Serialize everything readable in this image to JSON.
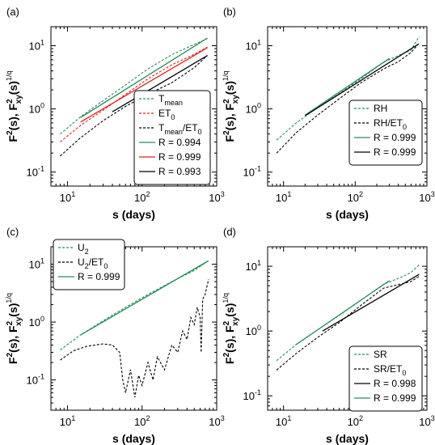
{
  "chart_data": [
    {
      "type": "line",
      "panel": "(a)",
      "xlabel": "s (days)",
      "ylabel_main": "F",
      "ylabel_sup1": "2",
      "ylabel_mid": "(s), F",
      "ylabel_sup2": "2",
      "ylabel_sub": "xy",
      "ylabel_tail": "(s)",
      "ylabel_sup3": "1/q",
      "xscale": "log",
      "yscale": "log",
      "xlim": [
        6,
        1000
      ],
      "ylim": [
        0.06,
        20
      ],
      "legend_position": "lower-right",
      "series": [
        {
          "name": "T",
          "name_sub": "mean",
          "color": "#2a8a5a",
          "dash": true,
          "x": [
            8,
            15,
            30,
            60,
            120,
            250,
            500,
            750
          ],
          "y": [
            0.4,
            0.75,
            1.35,
            2.4,
            4.3,
            7.2,
            10.5,
            13.0
          ]
        },
        {
          "name": "ET",
          "name_sub": "0",
          "color": "#e0231c",
          "dash": true,
          "x": [
            8,
            15,
            30,
            60,
            120,
            250,
            500,
            750
          ],
          "y": [
            0.3,
            0.55,
            0.95,
            1.7,
            3.0,
            5.0,
            7.3,
            9.5
          ]
        },
        {
          "name": "T",
          "name_sub": "mean",
          "name_tail": "/ET",
          "name_sub2": "0",
          "color": "#000000",
          "dash": true,
          "x": [
            8,
            15,
            30,
            60,
            120,
            250,
            500,
            750
          ],
          "y": [
            0.18,
            0.35,
            0.65,
            1.1,
            1.7,
            2.6,
            4.5,
            7.0
          ]
        },
        {
          "name": "R = 0.994",
          "color": "#2a8a5a",
          "dash": false,
          "x": [
            15,
            750
          ],
          "y": [
            0.73,
            13.2
          ]
        },
        {
          "name": "R = 0.999",
          "color": "#e0231c",
          "dash": false,
          "x": [
            15,
            750
          ],
          "y": [
            0.62,
            9.3
          ]
        },
        {
          "name": "R = 0.993",
          "color": "#000000",
          "dash": false,
          "x": [
            40,
            750
          ],
          "y": [
            0.9,
            7.0
          ]
        }
      ]
    },
    {
      "type": "line",
      "panel": "(b)",
      "xlabel": "s (days)",
      "ylabel_main": "F",
      "ylabel_sup1": "2",
      "ylabel_mid": "(s), F",
      "ylabel_sup2": "2",
      "ylabel_sub": "xy",
      "ylabel_tail": "(s)",
      "ylabel_sup3": "1/q",
      "xscale": "log",
      "yscale": "log",
      "xlim": [
        6,
        1000
      ],
      "ylim": [
        0.06,
        20
      ],
      "legend_position": "lower-right",
      "series": [
        {
          "name": "RH",
          "color": "#2a8a5a",
          "dash": true,
          "x": [
            8,
            15,
            30,
            60,
            120,
            250,
            400,
            600,
            780
          ],
          "y": [
            0.32,
            0.6,
            1.05,
            1.75,
            3.0,
            5.5,
            7.0,
            8.5,
            14.0
          ]
        },
        {
          "name": "RH/ET",
          "name_sub": "0",
          "color": "#000000",
          "dash": true,
          "x": [
            8,
            15,
            30,
            60,
            120,
            250,
            400,
            600,
            780
          ],
          "y": [
            0.2,
            0.42,
            0.8,
            1.45,
            2.6,
            4.3,
            5.6,
            7.8,
            11.0
          ]
        },
        {
          "name": "R = 0.999",
          "color": "#2a8a5a",
          "dash": false,
          "x": [
            20,
            300
          ],
          "y": [
            0.8,
            6.3
          ]
        },
        {
          "name": "R = 0.999",
          "color": "#000000",
          "dash": false,
          "x": [
            20,
            750
          ],
          "y": [
            0.78,
            10.5
          ]
        }
      ]
    },
    {
      "type": "line",
      "panel": "(c)",
      "xlabel": "s (days)",
      "ylabel_main": "F",
      "ylabel_sup1": "2",
      "ylabel_mid": "(s), F",
      "ylabel_sup2": "2",
      "ylabel_sub": "xy",
      "ylabel_tail": "(s)",
      "ylabel_sup3": "1/q",
      "xscale": "log",
      "yscale": "log",
      "xlim": [
        6,
        1000
      ],
      "ylim": [
        0.03,
        20
      ],
      "legend_position": "upper-left",
      "series": [
        {
          "name": "U",
          "name_sub": "2",
          "color": "#2a8a5a",
          "dash": true,
          "x": [
            8,
            15,
            30,
            60,
            120,
            250,
            500,
            780
          ],
          "y": [
            0.33,
            0.6,
            1.05,
            1.8,
            3.0,
            5.0,
            7.8,
            11.5
          ]
        },
        {
          "name": "U",
          "name_sub": "2",
          "name_tail": "/ET",
          "name_sub2": "0",
          "color": "#000000",
          "dash": true,
          "x": [
            8,
            12,
            18,
            30,
            40,
            50,
            55,
            60,
            70,
            80,
            90,
            100,
            120,
            140,
            160,
            200,
            250,
            300,
            350,
            400,
            450,
            500,
            550,
            600,
            620,
            650,
            700,
            780
          ],
          "y": [
            0.22,
            0.32,
            0.38,
            0.42,
            0.4,
            0.3,
            0.1,
            0.06,
            0.15,
            0.05,
            0.12,
            0.08,
            0.2,
            0.1,
            0.25,
            0.15,
            0.4,
            0.3,
            0.7,
            0.5,
            1.2,
            0.9,
            1.8,
            1.2,
            0.3,
            2.5,
            3.0,
            5.5
          ]
        },
        {
          "name": "R = 0.999",
          "color": "#2a8a5a",
          "dash": false,
          "x": [
            15,
            780
          ],
          "y": [
            0.6,
            11.5
          ]
        }
      ]
    },
    {
      "type": "line",
      "panel": "(d)",
      "xlabel": "s (days)",
      "ylabel_main": "F",
      "ylabel_sup1": "2",
      "ylabel_mid": "(s), F",
      "ylabel_sup2": "2",
      "ylabel_sub": "xy",
      "ylabel_tail": "(s)",
      "ylabel_sup3": "1/q",
      "xscale": "log",
      "yscale": "log",
      "xlim": [
        6,
        1000
      ],
      "ylim": [
        0.06,
        20
      ],
      "legend_position": "lower-right",
      "series": [
        {
          "name": "SR",
          "color": "#2a8a5a",
          "dash": true,
          "x": [
            8,
            15,
            30,
            60,
            120,
            250,
            400,
            600,
            780
          ],
          "y": [
            0.35,
            0.62,
            1.05,
            1.75,
            3.0,
            5.3,
            6.5,
            8.0,
            10.5
          ]
        },
        {
          "name": "SR/ET",
          "name_sub": "0",
          "color": "#000000",
          "dash": true,
          "x": [
            8,
            15,
            30,
            60,
            120,
            250,
            400,
            600,
            780
          ],
          "y": [
            0.25,
            0.45,
            0.8,
            1.35,
            2.5,
            4.6,
            5.2,
            5.8,
            7.0
          ]
        },
        {
          "name": "R = 0.998",
          "color": "#000000",
          "dash": false,
          "x": [
            35,
            780
          ],
          "y": [
            1.0,
            7.5
          ]
        },
        {
          "name": "R = 0.999",
          "color": "#2a8a5a",
          "dash": false,
          "x": [
            15,
            300
          ],
          "y": [
            0.62,
            6.0
          ]
        }
      ]
    }
  ]
}
